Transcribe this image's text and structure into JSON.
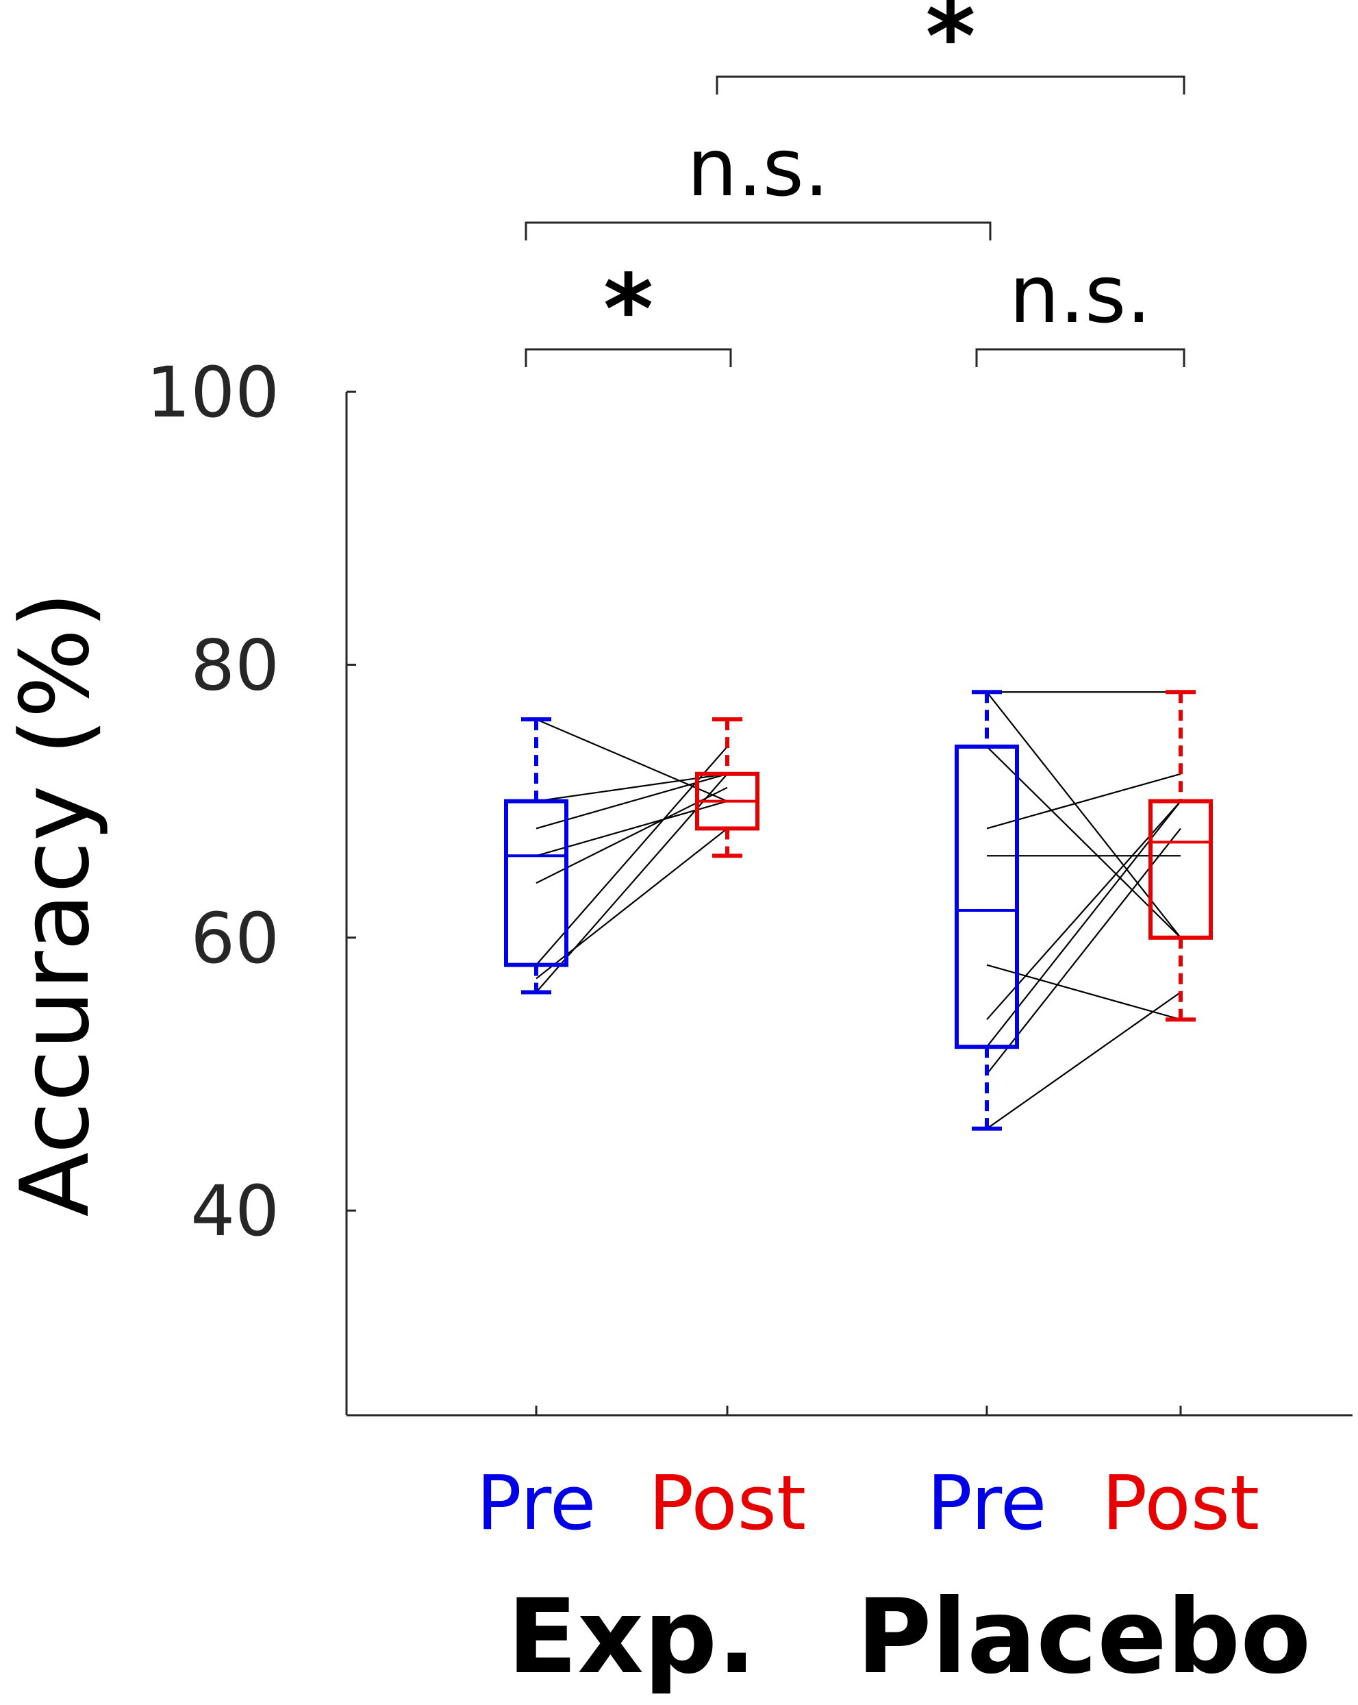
{
  "chart_data": {
    "type": "box",
    "ylabel": "Accuracy (%)",
    "xlabel": "",
    "ylim": [
      25,
      100
    ],
    "yticks": [
      40,
      60,
      80,
      100
    ],
    "colors": {
      "pre": "#0000e6",
      "post": "#e60000",
      "paired": "#000000",
      "axis": "#262626"
    },
    "categories": [
      {
        "label": "Pre",
        "group": "Exp.",
        "color": "#0000e6"
      },
      {
        "label": "Post",
        "group": "Exp.",
        "color": "#e60000"
      },
      {
        "label": "Pre",
        "group": "Placebo",
        "color": "#0000e6"
      },
      {
        "label": "Post",
        "group": "Placebo",
        "color": "#e60000"
      }
    ],
    "groups": [
      "Exp.",
      "Placebo"
    ],
    "boxes": [
      {
        "category": "Exp. Pre",
        "whisker_low": 56,
        "q1": 58,
        "median": 66,
        "q3": 70,
        "whisker_high": 76
      },
      {
        "category": "Exp. Post",
        "whisker_low": 66,
        "q1": 68,
        "median": 70,
        "q3": 72,
        "whisker_high": 76
      },
      {
        "category": "Placebo Pre",
        "whisker_low": 46,
        "q1": 52,
        "median": 62,
        "q3": 74,
        "whisker_high": 78
      },
      {
        "category": "Placebo Post",
        "whisker_low": 54,
        "q1": 60,
        "median": 67,
        "q3": 70,
        "whisker_high": 78
      }
    ],
    "paired_lines": {
      "Exp.": [
        [
          76,
          70
        ],
        [
          70,
          72
        ],
        [
          68,
          72
        ],
        [
          66,
          70
        ],
        [
          64,
          71
        ],
        [
          58,
          74
        ],
        [
          56,
          72
        ],
        [
          57,
          68
        ]
      ],
      "Placebo": [
        [
          78,
          78
        ],
        [
          74,
          60
        ],
        [
          78,
          60
        ],
        [
          68,
          72
        ],
        [
          66,
          66
        ],
        [
          58,
          54
        ],
        [
          54,
          70
        ],
        [
          50,
          68
        ],
        [
          52,
          70
        ],
        [
          46,
          56
        ]
      ]
    },
    "significance": [
      {
        "pair": [
          "Exp. Pre",
          "Exp. Post"
        ],
        "label": "*"
      },
      {
        "pair": [
          "Placebo Pre",
          "Placebo Post"
        ],
        "label": "n.s."
      },
      {
        "pair": [
          "Exp. Pre",
          "Placebo Pre"
        ],
        "label": "n.s."
      },
      {
        "pair": [
          "Exp. Post",
          "Placebo Post"
        ],
        "label": "*"
      }
    ]
  }
}
